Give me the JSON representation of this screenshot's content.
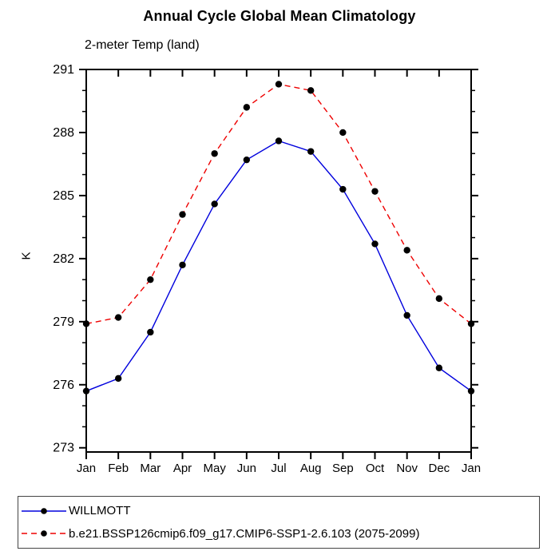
{
  "chart_data": {
    "type": "line",
    "title": "Annual Cycle Global Mean Climatology",
    "subtitle": "2-meter Temp (land)",
    "ylabel": "K",
    "x_categories": [
      "Jan",
      "Feb",
      "Mar",
      "Apr",
      "May",
      "Jun",
      "Jul",
      "Aug",
      "Sep",
      "Oct",
      "Nov",
      "Dec",
      "Jan"
    ],
    "y_ticks": [
      273,
      276,
      279,
      282,
      285,
      288,
      291
    ],
    "y_minor_tick_interval": 1,
    "ylim": [
      272.8,
      291
    ],
    "grid": false,
    "legend_position": "bottom",
    "colors": {
      "axis": "#000000",
      "marker": "#000000",
      "background": "#ffffff",
      "willmott_line": "#0000dd",
      "model_line": "#ee0000"
    },
    "series": [
      {
        "name": "WILLMOTT",
        "line_style": "solid",
        "color": "#0000dd",
        "marker": "circle",
        "values": [
          275.7,
          276.3,
          278.5,
          281.7,
          284.6,
          286.7,
          287.6,
          287.1,
          285.3,
          282.7,
          279.3,
          276.8,
          275.7
        ]
      },
      {
        "name": "b.e21.BSSP126cmip6.f09_g17.CMIP6-SSP1-2.6.103 (2075-2099)",
        "line_style": "dashed",
        "color": "#ee0000",
        "marker": "circle",
        "values": [
          278.9,
          279.2,
          281.0,
          284.1,
          287.0,
          289.2,
          290.3,
          290.0,
          288.0,
          285.2,
          282.4,
          280.1,
          278.9
        ]
      }
    ]
  }
}
